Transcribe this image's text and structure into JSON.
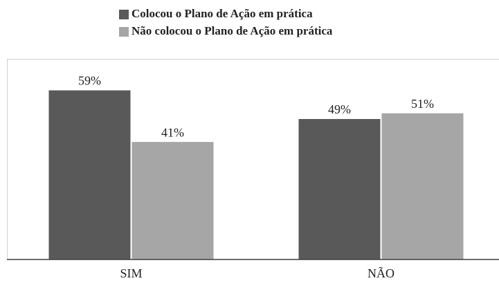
{
  "chart_data": {
    "type": "bar",
    "categories": [
      "SIM",
      "NÃO"
    ],
    "series": [
      {
        "name": "Colocou o Plano de Ação em prática",
        "color": "#595959",
        "values": [
          59,
          49
        ],
        "value_labels": [
          "59%",
          "49%"
        ]
      },
      {
        "name": "Não colocou o Plano de Ação em prática",
        "color": "#a6a6a6",
        "values": [
          41,
          51
        ],
        "value_labels": [
          "41%",
          "51%"
        ]
      }
    ],
    "ylim": [
      0,
      70
    ],
    "legend": "top"
  }
}
